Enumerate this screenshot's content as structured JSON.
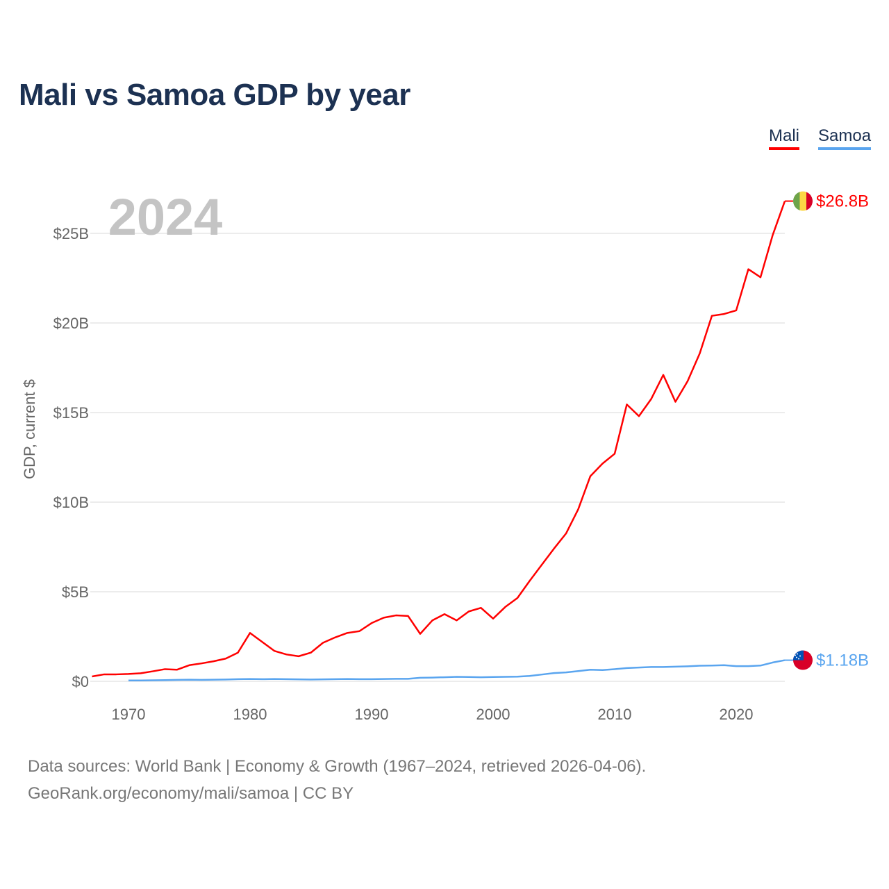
{
  "title": "Mali vs Samoa GDP by year",
  "legend": [
    {
      "label": "Mali"
    },
    {
      "label": "Samoa"
    }
  ],
  "footer": {
    "line1": "Data sources: World Bank | Economy & Growth (1967–2024, retrieved 2026-04-06).",
    "line2": "GeoRank.org/economy/mali/samoa | CC BY"
  },
  "chart_data": {
    "type": "line",
    "title": "Mali vs Samoa GDP by year",
    "ylabel": "GDP, current $",
    "xlabel": "",
    "year_watermark": "2024",
    "xlim": [
      1967,
      2024
    ],
    "ylim": [
      0,
      27
    ],
    "x_ticks": [
      "1970",
      "1980",
      "1990",
      "2000",
      "2010",
      "2020"
    ],
    "y_ticks": [
      {
        "v": 0,
        "label": "$0"
      },
      {
        "v": 5,
        "label": "$5B"
      },
      {
        "v": 10,
        "label": "$10B"
      },
      {
        "v": 15,
        "label": "$15B"
      },
      {
        "v": 20,
        "label": "$20B"
      },
      {
        "v": 25,
        "label": "$25B"
      }
    ],
    "grid": true,
    "legend_position": "top-right",
    "units": "billion USD",
    "series": [
      {
        "name": "Mali",
        "color": "#ff0000",
        "end_label": "$26.8B",
        "flag": "mali-flag",
        "start_year": 1967,
        "values": [
          0.27,
          0.39,
          0.39,
          0.41,
          0.45,
          0.56,
          0.68,
          0.65,
          0.9,
          1.0,
          1.12,
          1.27,
          1.6,
          2.7,
          2.2,
          1.7,
          1.5,
          1.4,
          1.6,
          2.15,
          2.45,
          2.7,
          2.8,
          3.25,
          3.55,
          3.68,
          3.65,
          2.65,
          3.4,
          3.75,
          3.4,
          3.9,
          4.1,
          3.5,
          4.15,
          4.65,
          5.6,
          6.5,
          7.4,
          8.25,
          9.6,
          11.45,
          12.15,
          12.7,
          15.45,
          14.8,
          15.75,
          17.1,
          15.6,
          16.75,
          18.3,
          20.4,
          20.5,
          20.7,
          23.0,
          22.55,
          24.9,
          26.8
        ]
      },
      {
        "name": "Samoa",
        "color": "#5aa5ef",
        "end_label": "$1.18B",
        "flag": "samoa-flag",
        "start_year": 1970,
        "values": [
          0.05,
          0.05,
          0.06,
          0.07,
          0.08,
          0.09,
          0.08,
          0.09,
          0.1,
          0.12,
          0.13,
          0.12,
          0.13,
          0.12,
          0.11,
          0.1,
          0.11,
          0.12,
          0.13,
          0.12,
          0.12,
          0.13,
          0.14,
          0.14,
          0.2,
          0.21,
          0.23,
          0.25,
          0.24,
          0.23,
          0.24,
          0.25,
          0.26,
          0.3,
          0.38,
          0.46,
          0.5,
          0.57,
          0.65,
          0.63,
          0.68,
          0.74,
          0.77,
          0.8,
          0.8,
          0.82,
          0.84,
          0.87,
          0.88,
          0.9,
          0.85,
          0.85,
          0.88,
          1.05,
          1.18
        ]
      }
    ]
  }
}
